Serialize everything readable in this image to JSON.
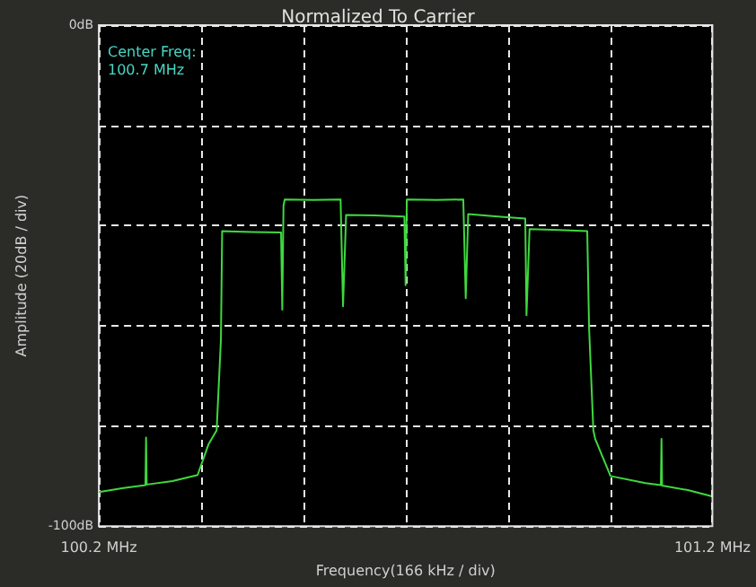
{
  "chart_data": {
    "type": "line",
    "title": "Normalized To Carrier",
    "xlabel": "Frequency(166 kHz / div)",
    "ylabel": "Amplitude (20dB / div)",
    "annotations": [
      "Center Freq:\n100.7 MHz"
    ],
    "xlim": [
      100.2,
      101.2
    ],
    "xticks": [
      {
        "value": 100.2,
        "label": "100.2 MHz"
      },
      {
        "value": 100.3667,
        "label": null
      },
      {
        "value": 100.5333,
        "label": null
      },
      {
        "value": 100.7,
        "label": null
      },
      {
        "value": 100.8667,
        "label": null
      },
      {
        "value": 101.0333,
        "label": null
      },
      {
        "value": 101.2,
        "label": "101.2 MHz"
      }
    ],
    "ylim": [
      -100,
      0
    ],
    "yticks": [
      {
        "value": -100,
        "label": "-100dB"
      },
      {
        "value": -80,
        "label": null
      },
      {
        "value": -60,
        "label": null
      },
      {
        "value": -40,
        "label": null
      },
      {
        "value": -20,
        "label": null
      },
      {
        "value": 0,
        "label": "0dB"
      }
    ],
    "grid": true,
    "series": [
      {
        "color": "#3fd83f",
        "x": [
          100.2,
          100.24,
          100.276,
          100.277,
          100.278,
          100.32,
          100.361,
          100.379,
          100.392,
          100.399,
          100.401,
          100.45,
          100.497,
          100.499,
          100.501,
          100.503,
          100.55,
          100.594,
          100.598,
          100.603,
          100.65,
          100.698,
          100.7,
          100.702,
          100.75,
          100.794,
          100.798,
          100.802,
          100.85,
          100.895,
          100.897,
          100.902,
          100.95,
          100.996,
          100.999,
          101.006,
          101.009,
          101.034,
          101.091,
          101.116,
          101.117,
          101.118,
          101.16,
          101.198
        ],
        "values": [
          -93.2,
          -92.4,
          -91.8,
          -82.3,
          -91.7,
          -91.0,
          -89.8,
          -83.6,
          -80.9,
          -62.7,
          -41.1,
          -41.3,
          -41.4,
          -56.8,
          -36,
          -34.8,
          -34.9,
          -34.8,
          -56.1,
          -37.9,
          -38.0,
          -38.2,
          -51.9,
          -34.8,
          -34.9,
          -34.8,
          -54.5,
          -37.7,
          -38.2,
          -38.6,
          -57.9,
          -40.7,
          -40.9,
          -41.1,
          -60.4,
          -80.9,
          -82.6,
          -90.0,
          -91.4,
          -91.8,
          -82.6,
          -91.9,
          -92.8,
          -94.0
        ]
      }
    ]
  }
}
